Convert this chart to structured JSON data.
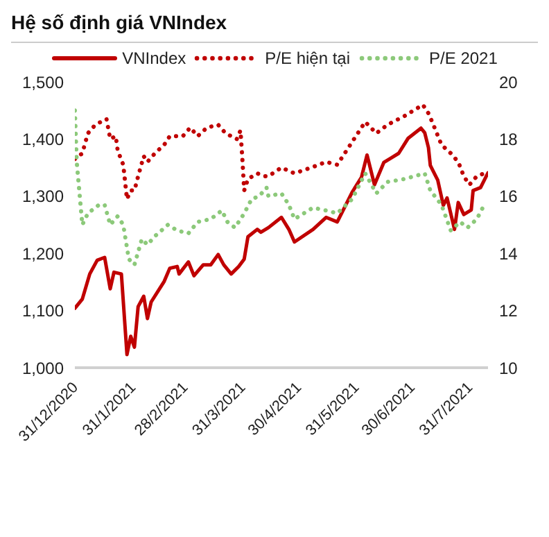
{
  "chart_data": {
    "type": "line",
    "title": "Hệ số định giá VNIndex",
    "xlim": [
      "2020-12-31",
      "2021-08-10"
    ],
    "xticks": [
      {
        "value": "2020-12-31",
        "label": "31/12/2020"
      },
      {
        "value": "2021-01-31",
        "label": "31/1/2021"
      },
      {
        "value": "2021-02-28",
        "label": "28/2/2021"
      },
      {
        "value": "2021-03-31",
        "label": "31/3/2021"
      },
      {
        "value": "2021-04-30",
        "label": "30/4/2021"
      },
      {
        "value": "2021-05-31",
        "label": "31/5/2021"
      },
      {
        "value": "2021-06-30",
        "label": "30/6/2021"
      },
      {
        "value": "2021-07-31",
        "label": "31/7/2021"
      }
    ],
    "ylim": [
      1000,
      1500
    ],
    "yticks": [
      {
        "value": 1000,
        "label": "1,000"
      },
      {
        "value": 1100,
        "label": "1,100"
      },
      {
        "value": 1200,
        "label": "1,200"
      },
      {
        "value": 1300,
        "label": "1,300"
      },
      {
        "value": 1400,
        "label": "1,400"
      },
      {
        "value": 1500,
        "label": "1,500"
      }
    ],
    "y2lim": [
      10,
      20
    ],
    "y2ticks": [
      10,
      12,
      14,
      16,
      18,
      20
    ],
    "legend": "top",
    "series": [
      {
        "name": "VNIndex",
        "color": "#c00000",
        "line_style": "solid",
        "x": [
          "2020-12-31",
          "2021-01-04",
          "2021-01-08",
          "2021-01-12",
          "2021-01-16",
          "2021-01-19",
          "2021-01-21",
          "2021-01-25",
          "2021-01-28",
          "2021-01-30",
          "2021-02-01",
          "2021-02-03",
          "2021-02-06",
          "2021-02-08",
          "2021-02-10",
          "2021-02-17",
          "2021-02-20",
          "2021-02-24",
          "2021-02-25",
          "2021-03-02",
          "2021-03-05",
          "2021-03-10",
          "2021-03-14",
          "2021-03-18",
          "2021-03-21",
          "2021-03-25",
          "2021-03-29",
          "2021-04-01",
          "2021-04-03",
          "2021-04-08",
          "2021-04-10",
          "2021-04-14",
          "2021-04-21",
          "2021-04-25",
          "2021-04-28",
          "2021-05-08",
          "2021-05-15",
          "2021-05-21",
          "2021-05-29",
          "2021-06-03",
          "2021-06-06",
          "2021-06-10",
          "2021-06-15",
          "2021-06-19",
          "2021-06-23",
          "2021-06-28",
          "2021-07-05",
          "2021-07-07",
          "2021-07-09",
          "2021-07-10",
          "2021-07-14",
          "2021-07-17",
          "2021-07-19",
          "2021-07-23",
          "2021-07-25",
          "2021-07-28",
          "2021-08-01",
          "2021-08-02",
          "2021-08-06",
          "2021-08-10"
        ],
        "values": [
          1104,
          1120,
          1164,
          1188,
          1193,
          1138,
          1167,
          1164,
          1023,
          1055,
          1036,
          1107,
          1125,
          1086,
          1115,
          1151,
          1174,
          1177,
          1164,
          1185,
          1161,
          1180,
          1180,
          1198,
          1180,
          1164,
          1177,
          1190,
          1229,
          1242,
          1237,
          1245,
          1263,
          1242,
          1220,
          1242,
          1263,
          1255,
          1307,
          1333,
          1372,
          1320,
          1359,
          1367,
          1375,
          1401,
          1419,
          1411,
          1385,
          1354,
          1328,
          1284,
          1297,
          1242,
          1289,
          1268,
          1276,
          1310,
          1315,
          1341
        ]
      },
      {
        "name": "P/E hiện tại",
        "color": "#c00000",
        "line_style": "dotted",
        "axis": "y2",
        "x": [
          "2020-12-31",
          "2021-01-04",
          "2021-01-07",
          "2021-01-11",
          "2021-01-17",
          "2021-01-19",
          "2021-01-22",
          "2021-01-23",
          "2021-01-26",
          "2021-01-28",
          "2021-01-30",
          "2021-02-01",
          "2021-02-03",
          "2021-02-06",
          "2021-02-08",
          "2021-02-12",
          "2021-02-17",
          "2021-02-20",
          "2021-02-27",
          "2021-03-03",
          "2021-03-07",
          "2021-03-12",
          "2021-03-18",
          "2021-03-22",
          "2021-03-28",
          "2021-03-30",
          "2021-03-31",
          "2021-04-01",
          "2021-04-03",
          "2021-04-08",
          "2021-04-12",
          "2021-04-14",
          "2021-04-21",
          "2021-04-28",
          "2021-05-07",
          "2021-05-15",
          "2021-05-21",
          "2021-05-29",
          "2021-06-05",
          "2021-06-11",
          "2021-06-17",
          "2021-06-26",
          "2021-07-06",
          "2021-07-09",
          "2021-07-11",
          "2021-07-16",
          "2021-07-21",
          "2021-07-25",
          "2021-07-28",
          "2021-07-31",
          "2021-08-04",
          "2021-08-08"
        ],
        "values": [
          17.3,
          17.5,
          18.2,
          18.5,
          18.7,
          18.0,
          18.1,
          17.6,
          17.1,
          15.9,
          16.2,
          16.2,
          16.7,
          17.4,
          17.2,
          17.5,
          17.8,
          18.1,
          18.1,
          18.4,
          18.1,
          18.4,
          18.5,
          18.2,
          18.0,
          18.3,
          17.3,
          16.2,
          16.6,
          16.8,
          16.7,
          16.7,
          17.0,
          16.8,
          17.0,
          17.2,
          17.1,
          17.9,
          18.6,
          18.2,
          18.5,
          18.8,
          19.2,
          18.9,
          18.6,
          17.8,
          17.5,
          17.2,
          16.7,
          16.4,
          16.7,
          16.8
        ]
      },
      {
        "name": "P/E 2021",
        "color": "#8cc97a",
        "line_style": "dotted",
        "axis": "y2",
        "x": [
          "2020-12-31",
          "2021-01-01",
          "2021-01-04",
          "2021-01-07",
          "2021-01-13",
          "2021-01-16",
          "2021-01-19",
          "2021-01-23",
          "2021-01-26",
          "2021-01-29",
          "2021-02-01",
          "2021-02-05",
          "2021-02-08",
          "2021-02-12",
          "2021-02-19",
          "2021-02-24",
          "2021-03-02",
          "2021-03-07",
          "2021-03-14",
          "2021-03-20",
          "2021-03-23",
          "2021-03-27",
          "2021-04-01",
          "2021-04-05",
          "2021-04-09",
          "2021-04-13",
          "2021-04-14",
          "2021-04-21",
          "2021-04-25",
          "2021-04-28",
          "2021-05-08",
          "2021-05-15",
          "2021-05-21",
          "2021-05-29",
          "2021-06-05",
          "2021-06-11",
          "2021-06-17",
          "2021-06-26",
          "2021-07-07",
          "2021-07-10",
          "2021-07-16",
          "2021-07-21",
          "2021-07-26",
          "2021-07-30",
          "2021-08-04",
          "2021-08-08"
        ],
        "values": [
          19.0,
          17.2,
          15.0,
          15.4,
          15.7,
          15.7,
          15.0,
          15.3,
          15.0,
          13.8,
          13.6,
          14.5,
          14.3,
          14.6,
          15.0,
          14.8,
          14.7,
          15.1,
          15.2,
          15.5,
          15.1,
          14.9,
          15.4,
          15.9,
          16.0,
          16.3,
          16.0,
          16.1,
          15.7,
          15.2,
          15.6,
          15.5,
          15.4,
          15.9,
          16.8,
          16.1,
          16.5,
          16.6,
          16.8,
          16.2,
          15.7,
          14.8,
          15.1,
          14.9,
          15.2,
          15.7
        ]
      }
    ]
  }
}
